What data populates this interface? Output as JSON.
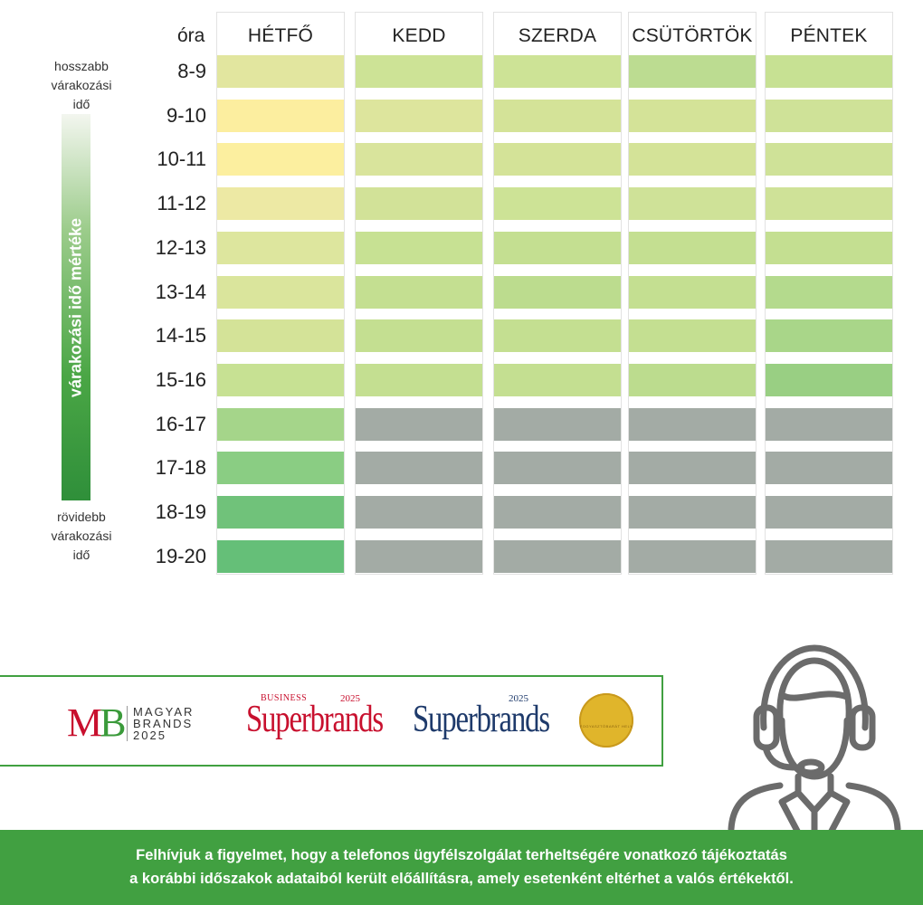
{
  "chart_data": {
    "type": "heatmap",
    "row_header": "óra",
    "columns": [
      "HÉTFŐ",
      "KEDD",
      "SZERDA",
      "CSÜTÖRTÖK",
      "PÉNTEK"
    ],
    "rows": [
      "8-9",
      "9-10",
      "10-11",
      "11-12",
      "12-13",
      "13-14",
      "14-15",
      "15-16",
      "16-17",
      "17-18",
      "18-19",
      "19-20"
    ],
    "legend": {
      "top_label": [
        "hosszabb",
        "várakozási",
        "idő"
      ],
      "bottom_label": [
        "rövidebb",
        "várakozási",
        "idő"
      ],
      "bar_label": "várakozási idő mértéke"
    },
    "cells": [
      [
        "#e2e69f",
        "#cde396",
        "#cde396",
        "#bcdc91",
        "#c7e193"
      ],
      [
        "#fcee9f",
        "#dde59d",
        "#d4e398",
        "#d4e398",
        "#cfe298"
      ],
      [
        "#fcef9f",
        "#d9e49c",
        "#d4e398",
        "#d4e398",
        "#cfe298"
      ],
      [
        "#ede9a4",
        "#d2e298",
        "#cde396",
        "#cfe298",
        "#cfe298"
      ],
      [
        "#dde69e",
        "#c7e193",
        "#c4df91",
        "#c4df91",
        "#c4df91"
      ],
      [
        "#dae59c",
        "#c4df91",
        "#bcdc8e",
        "#c4df91",
        "#b4da8d"
      ],
      [
        "#d4e398",
        "#c4df91",
        "#c4df91",
        "#c4df91",
        "#a9d689"
      ],
      [
        "#c7e193",
        "#c4df91",
        "#c4df91",
        "#bcdc8e",
        "#99cf83"
      ],
      [
        "#a5d58a",
        "#a3aba5",
        "#a3aba5",
        "#a3aba5",
        "#a3aba5"
      ],
      [
        "#8acd83",
        "#a3aba5",
        "#a3aba5",
        "#a3aba5",
        "#a3aba5"
      ],
      [
        "#70c27a",
        "#a3aba5",
        "#a3aba5",
        "#a3aba5",
        "#a3aba5"
      ],
      [
        "#65bf78",
        "#a3aba5",
        "#a3aba5",
        "#a3aba5",
        "#a3aba5"
      ]
    ]
  },
  "logos": {
    "magyar_brands": {
      "mark": "MB",
      "lines": [
        "MAGYAR",
        "BRANDS",
        "2025"
      ],
      "colors": [
        "#c8102e",
        "#3a9a3a"
      ]
    },
    "business_superbrands": {
      "small": "BUSINESS",
      "name": "Superbrands",
      "year": "2025",
      "color": "#c8102e"
    },
    "superbrands": {
      "name": "Superbrands",
      "year": "2025",
      "color": "#1e3a6b"
    },
    "gold_seal": {
      "text": "FOGYASZTÓBARÁT HELY",
      "color": "#e0b52b"
    }
  },
  "icons": {
    "agent": "customer-service-agent-icon",
    "agent_color": "#6b6b6b"
  },
  "footer": {
    "lines": [
      "Felhívjuk a figyelmet, hogy a telefonos ügyfélszolgálat terheltségére vonatkozó tájékoztatás",
      "a korábbi időszakok adataiból került előállításra, amely esetenként eltérhet a valós értékektől."
    ],
    "background": "#41a041"
  }
}
